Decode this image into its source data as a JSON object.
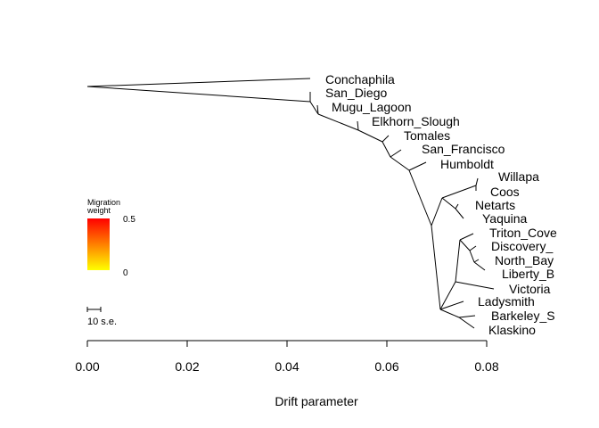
{
  "chart_data": {
    "type": "tree",
    "xlabel": "Drift parameter",
    "x_ticks": [
      "0.00",
      "0.02",
      "0.04",
      "0.06",
      "0.08"
    ],
    "x_tick_values": [
      0.0,
      0.02,
      0.04,
      0.06,
      0.08
    ],
    "xlim": [
      0.0,
      0.08
    ],
    "tips": [
      {
        "name": "Conchaphila",
        "drift": 0.0445
      },
      {
        "name": "San_Diego",
        "drift": 0.0445
      },
      {
        "name": "Mugu_Lagoon",
        "drift": 0.046
      },
      {
        "name": "Elkhorn_Slough",
        "drift": 0.054
      },
      {
        "name": "Tomales",
        "drift": 0.06
      },
      {
        "name": "San_Francisco",
        "drift": 0.0615
      },
      {
        "name": "Humboldt",
        "drift": 0.068
      },
      {
        "name": "Willapa",
        "drift": 0.0785
      },
      {
        "name": "Coos",
        "drift": 0.0775
      },
      {
        "name": "Netarts",
        "drift": 0.0745
      },
      {
        "name": "Yaquina",
        "drift": 0.0745
      },
      {
        "name": "Triton_Cove",
        "drift": 0.0795
      },
      {
        "name": "Discovery_",
        "drift": 0.08
      },
      {
        "name": "North_Bay",
        "drift": 0.0805
      },
      {
        "name": "Liberty_B",
        "drift": 0.0815
      },
      {
        "name": "Victoria",
        "drift": 0.0815
      },
      {
        "name": "Ladysmith",
        "drift": 0.0735
      },
      {
        "name": "Barkeley_S",
        "drift": 0.079
      },
      {
        "name": "Klaskino",
        "drift": 0.079
      }
    ],
    "legend": {
      "title_line1": "Migration",
      "title_line2": "weight",
      "max_label": "0.5",
      "min_label": "0",
      "color_top": "#ff0000",
      "color_bottom": "#ffff00"
    },
    "scale_bar": {
      "label": "10 s.e."
    }
  }
}
